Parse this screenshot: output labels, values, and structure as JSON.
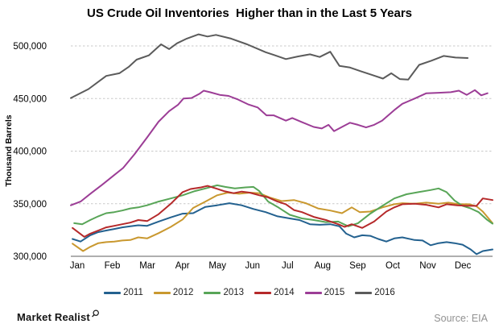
{
  "chart_data": {
    "type": "line",
    "title": "US Crude Oil Inventories  Higher than in the Last 5 Years",
    "ylabel": "Thousand Barrels",
    "xlabel": "",
    "ylim": [
      300000,
      515000
    ],
    "grid": "horizontal-dashed",
    "legend_position": "bottom",
    "gridline_color": "#c9c9c9",
    "axis_color": "#7f7f7f",
    "yticks": [
      {
        "value": 300000,
        "label": "300,000"
      },
      {
        "value": 350000,
        "label": "350,000"
      },
      {
        "value": 400000,
        "label": "400,000"
      },
      {
        "value": 450000,
        "label": "450,000"
      },
      {
        "value": 500000,
        "label": "500,000"
      }
    ],
    "x_categories": [
      "Jan",
      "Feb",
      "Mar",
      "Apr",
      "May",
      "Jun",
      "Jul",
      "Aug",
      "Sep",
      "Oct",
      "Nov",
      "Dec"
    ],
    "series": [
      {
        "name": "2011",
        "color": "#23618F",
        "points": [
          [
            0.004,
            316500
          ],
          [
            0.023,
            314000
          ],
          [
            0.046,
            320000
          ],
          [
            0.065,
            323000
          ],
          [
            0.084,
            324500
          ],
          [
            0.103,
            326000
          ],
          [
            0.122,
            327500
          ],
          [
            0.141,
            328500
          ],
          [
            0.16,
            329500
          ],
          [
            0.181,
            329000
          ],
          [
            0.208,
            333000
          ],
          [
            0.237,
            337000
          ],
          [
            0.265,
            340500
          ],
          [
            0.29,
            341000
          ],
          [
            0.319,
            347000
          ],
          [
            0.347,
            348500
          ],
          [
            0.376,
            350500
          ],
          [
            0.405,
            348500
          ],
          [
            0.433,
            345000
          ],
          [
            0.462,
            342000
          ],
          [
            0.49,
            338000
          ],
          [
            0.519,
            336000
          ],
          [
            0.542,
            334500
          ],
          [
            0.567,
            330500
          ],
          [
            0.59,
            330000
          ],
          [
            0.615,
            330500
          ],
          [
            0.637,
            328500
          ],
          [
            0.653,
            321500
          ],
          [
            0.672,
            318000
          ],
          [
            0.691,
            320000
          ],
          [
            0.71,
            319500
          ],
          [
            0.729,
            316500
          ],
          [
            0.748,
            314000
          ],
          [
            0.767,
            317000
          ],
          [
            0.786,
            318000
          ],
          [
            0.815,
            315500
          ],
          [
            0.834,
            315000
          ],
          [
            0.853,
            310500
          ],
          [
            0.872,
            312500
          ],
          [
            0.891,
            313500
          ],
          [
            0.91,
            312500
          ],
          [
            0.929,
            311000
          ],
          [
            0.948,
            306500
          ],
          [
            0.962,
            302000
          ],
          [
            0.977,
            305000
          ],
          [
            1.0,
            306500
          ]
        ]
      },
      {
        "name": "2012",
        "color": "#C9982F",
        "points": [
          [
            0.004,
            312000
          ],
          [
            0.029,
            305000
          ],
          [
            0.046,
            309000
          ],
          [
            0.065,
            312500
          ],
          [
            0.084,
            313500
          ],
          [
            0.103,
            314000
          ],
          [
            0.122,
            315000
          ],
          [
            0.141,
            315500
          ],
          [
            0.16,
            318000
          ],
          [
            0.181,
            317000
          ],
          [
            0.208,
            322000
          ],
          [
            0.237,
            328000
          ],
          [
            0.265,
            335000
          ],
          [
            0.29,
            346000
          ],
          [
            0.319,
            352000
          ],
          [
            0.347,
            358000
          ],
          [
            0.372,
            360500
          ],
          [
            0.399,
            359500
          ],
          [
            0.424,
            360500
          ],
          [
            0.447,
            360000
          ],
          [
            0.471,
            356000
          ],
          [
            0.5,
            352500
          ],
          [
            0.529,
            353500
          ],
          [
            0.557,
            350500
          ],
          [
            0.586,
            345500
          ],
          [
            0.615,
            343500
          ],
          [
            0.643,
            341000
          ],
          [
            0.666,
            346500
          ],
          [
            0.685,
            342000
          ],
          [
            0.71,
            342500
          ],
          [
            0.739,
            346500
          ],
          [
            0.767,
            349500
          ],
          [
            0.786,
            350500
          ],
          [
            0.815,
            350000
          ],
          [
            0.843,
            351000
          ],
          [
            0.872,
            350000
          ],
          [
            0.895,
            351000
          ],
          [
            0.92,
            349500
          ],
          [
            0.944,
            349500
          ],
          [
            0.962,
            347500
          ],
          [
            0.977,
            342500
          ],
          [
            1.0,
            331500
          ]
        ]
      },
      {
        "name": "2013",
        "color": "#58A557",
        "points": [
          [
            0.008,
            331500
          ],
          [
            0.027,
            330500
          ],
          [
            0.046,
            334500
          ],
          [
            0.065,
            338000
          ],
          [
            0.084,
            341000
          ],
          [
            0.103,
            342000
          ],
          [
            0.122,
            343500
          ],
          [
            0.141,
            345500
          ],
          [
            0.16,
            346500
          ],
          [
            0.181,
            348500
          ],
          [
            0.208,
            352000
          ],
          [
            0.237,
            355000
          ],
          [
            0.265,
            358000
          ],
          [
            0.294,
            362000
          ],
          [
            0.319,
            364500
          ],
          [
            0.347,
            367500
          ],
          [
            0.366,
            366000
          ],
          [
            0.389,
            364500
          ],
          [
            0.414,
            365500
          ],
          [
            0.433,
            366000
          ],
          [
            0.447,
            362000
          ],
          [
            0.468,
            352000
          ],
          [
            0.49,
            347000
          ],
          [
            0.519,
            339500
          ],
          [
            0.548,
            336000
          ],
          [
            0.576,
            334500
          ],
          [
            0.605,
            332500
          ],
          [
            0.634,
            333000
          ],
          [
            0.658,
            328500
          ],
          [
            0.681,
            331500
          ],
          [
            0.71,
            340500
          ],
          [
            0.739,
            348000
          ],
          [
            0.767,
            355000
          ],
          [
            0.796,
            359000
          ],
          [
            0.824,
            361000
          ],
          [
            0.853,
            363000
          ],
          [
            0.872,
            364500
          ],
          [
            0.891,
            361000
          ],
          [
            0.91,
            353000
          ],
          [
            0.929,
            348000
          ],
          [
            0.948,
            345500
          ],
          [
            0.967,
            342000
          ],
          [
            0.986,
            335000
          ],
          [
            1.0,
            331000
          ]
        ]
      },
      {
        "name": "2014",
        "color": "#B5292A",
        "points": [
          [
            0.004,
            327000
          ],
          [
            0.032,
            318500
          ],
          [
            0.046,
            321500
          ],
          [
            0.065,
            324500
          ],
          [
            0.084,
            327500
          ],
          [
            0.103,
            329000
          ],
          [
            0.122,
            330500
          ],
          [
            0.141,
            332000
          ],
          [
            0.16,
            334500
          ],
          [
            0.181,
            333500
          ],
          [
            0.208,
            340000
          ],
          [
            0.237,
            350000
          ],
          [
            0.265,
            361000
          ],
          [
            0.284,
            364000
          ],
          [
            0.309,
            365500
          ],
          [
            0.324,
            367000
          ],
          [
            0.344,
            364500
          ],
          [
            0.363,
            362000
          ],
          [
            0.386,
            360000
          ],
          [
            0.405,
            361500
          ],
          [
            0.424,
            360500
          ],
          [
            0.447,
            358000
          ],
          [
            0.468,
            356000
          ],
          [
            0.49,
            352000
          ],
          [
            0.51,
            349500
          ],
          [
            0.529,
            344000
          ],
          [
            0.548,
            342000
          ],
          [
            0.576,
            337500
          ],
          [
            0.605,
            334500
          ],
          [
            0.634,
            330500
          ],
          [
            0.649,
            328000
          ],
          [
            0.666,
            330500
          ],
          [
            0.691,
            327000
          ],
          [
            0.719,
            333000
          ],
          [
            0.748,
            342500
          ],
          [
            0.767,
            346500
          ],
          [
            0.786,
            349500
          ],
          [
            0.815,
            350000
          ],
          [
            0.843,
            349000
          ],
          [
            0.872,
            346500
          ],
          [
            0.891,
            349500
          ],
          [
            0.916,
            348500
          ],
          [
            0.939,
            348000
          ],
          [
            0.962,
            348000
          ],
          [
            0.977,
            355000
          ],
          [
            1.0,
            353500
          ]
        ]
      },
      {
        "name": "2015",
        "color": "#9C3D96",
        "points": [
          [
            0.0,
            348500
          ],
          [
            0.023,
            352000
          ],
          [
            0.048,
            360000
          ],
          [
            0.074,
            368000
          ],
          [
            0.099,
            376000
          ],
          [
            0.124,
            384000
          ],
          [
            0.151,
            397000
          ],
          [
            0.181,
            413000
          ],
          [
            0.208,
            428000
          ],
          [
            0.233,
            438000
          ],
          [
            0.254,
            444000
          ],
          [
            0.267,
            450000
          ],
          [
            0.286,
            450500
          ],
          [
            0.305,
            454500
          ],
          [
            0.315,
            457500
          ],
          [
            0.33,
            456000
          ],
          [
            0.353,
            453500
          ],
          [
            0.374,
            452500
          ],
          [
            0.397,
            449000
          ],
          [
            0.42,
            444500
          ],
          [
            0.443,
            441500
          ],
          [
            0.464,
            434000
          ],
          [
            0.481,
            434000
          ],
          [
            0.51,
            429000
          ],
          [
            0.525,
            431500
          ],
          [
            0.548,
            427500
          ],
          [
            0.576,
            423000
          ],
          [
            0.595,
            421500
          ],
          [
            0.611,
            425000
          ],
          [
            0.624,
            419000
          ],
          [
            0.643,
            423000
          ],
          [
            0.662,
            427000
          ],
          [
            0.681,
            425000
          ],
          [
            0.7,
            422500
          ],
          [
            0.719,
            425000
          ],
          [
            0.738,
            429000
          ],
          [
            0.767,
            439000
          ],
          [
            0.786,
            445000
          ],
          [
            0.815,
            450000
          ],
          [
            0.843,
            455000
          ],
          [
            0.872,
            455500
          ],
          [
            0.901,
            456000
          ],
          [
            0.92,
            457500
          ],
          [
            0.939,
            453500
          ],
          [
            0.958,
            458000
          ],
          [
            0.973,
            453000
          ],
          [
            0.988,
            455000
          ]
        ]
      },
      {
        "name": "2016",
        "color": "#5B5B5B",
        "points": [
          [
            0.0,
            450500
          ],
          [
            0.042,
            459000
          ],
          [
            0.084,
            471500
          ],
          [
            0.115,
            474000
          ],
          [
            0.137,
            480000
          ],
          [
            0.156,
            487000
          ],
          [
            0.185,
            491000
          ],
          [
            0.214,
            501500
          ],
          [
            0.233,
            497000
          ],
          [
            0.252,
            502500
          ],
          [
            0.275,
            507000
          ],
          [
            0.303,
            511000
          ],
          [
            0.324,
            509000
          ],
          [
            0.344,
            510500
          ],
          [
            0.38,
            507000
          ],
          [
            0.418,
            501500
          ],
          [
            0.462,
            494000
          ],
          [
            0.481,
            491500
          ],
          [
            0.51,
            487500
          ],
          [
            0.538,
            490000
          ],
          [
            0.567,
            492000
          ],
          [
            0.59,
            489500
          ],
          [
            0.615,
            494500
          ],
          [
            0.637,
            481000
          ],
          [
            0.662,
            479500
          ],
          [
            0.687,
            476000
          ],
          [
            0.714,
            472500
          ],
          [
            0.74,
            469000
          ],
          [
            0.76,
            474000
          ],
          [
            0.78,
            468500
          ],
          [
            0.8,
            468000
          ],
          [
            0.826,
            482000
          ],
          [
            0.855,
            486000
          ],
          [
            0.884,
            490500
          ],
          [
            0.912,
            489000
          ],
          [
            0.941,
            488500
          ]
        ]
      }
    ]
  },
  "footer": {
    "brand": "Market Realist",
    "source": "Source: EIA"
  }
}
